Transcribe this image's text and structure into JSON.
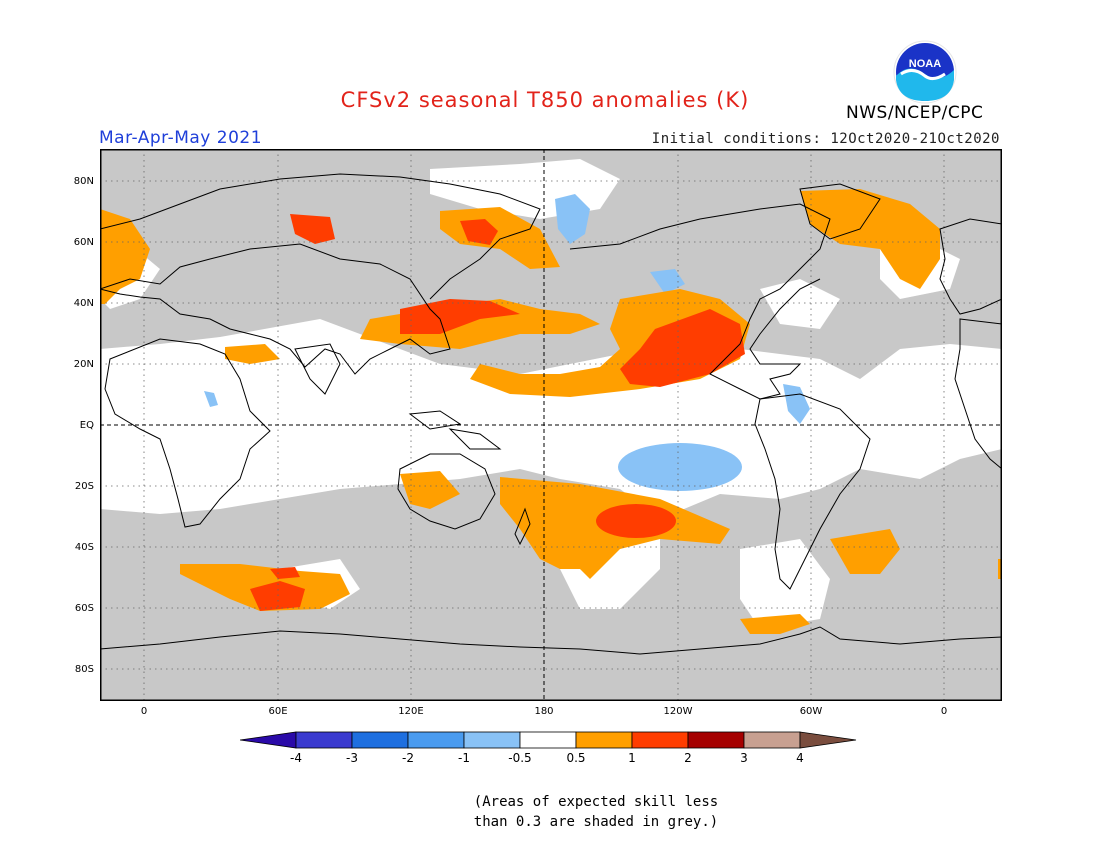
{
  "header": {
    "title": "CFSv2 seasonal T850 anomalies (K)",
    "season": "Mar-Apr-May 2021",
    "initial_conditions": "Initial conditions: 12Oct2020-21Oct2020",
    "agency": "NWS/NCEP/CPC",
    "logo_text": "NOAA"
  },
  "map": {
    "lat_labels": [
      "80N",
      "60N",
      "40N",
      "20N",
      "EQ",
      "20S",
      "40S",
      "60S",
      "80S"
    ],
    "lon_labels": [
      "0",
      "60E",
      "120E",
      "180",
      "120W",
      "60W",
      "0"
    ],
    "missing_skill_color": "#c8c8c8"
  },
  "legend": {
    "tick_labels": [
      "-4",
      "-3",
      "-2",
      "-1",
      "-0.5",
      "0.5",
      "1",
      "2",
      "3",
      "4"
    ],
    "colors": [
      "#2a0aa8",
      "#3a3acf",
      "#1e6fe0",
      "#4a9bef",
      "#89c2f6",
      "#ffffff",
      "#ff9f00",
      "#ff3d00",
      "#a50000",
      "#c8a091",
      "#7a4d3e"
    ]
  },
  "footnote": {
    "line1": "(Areas of expected skill less",
    "line2": "than 0.3 are shaded in grey.)"
  }
}
